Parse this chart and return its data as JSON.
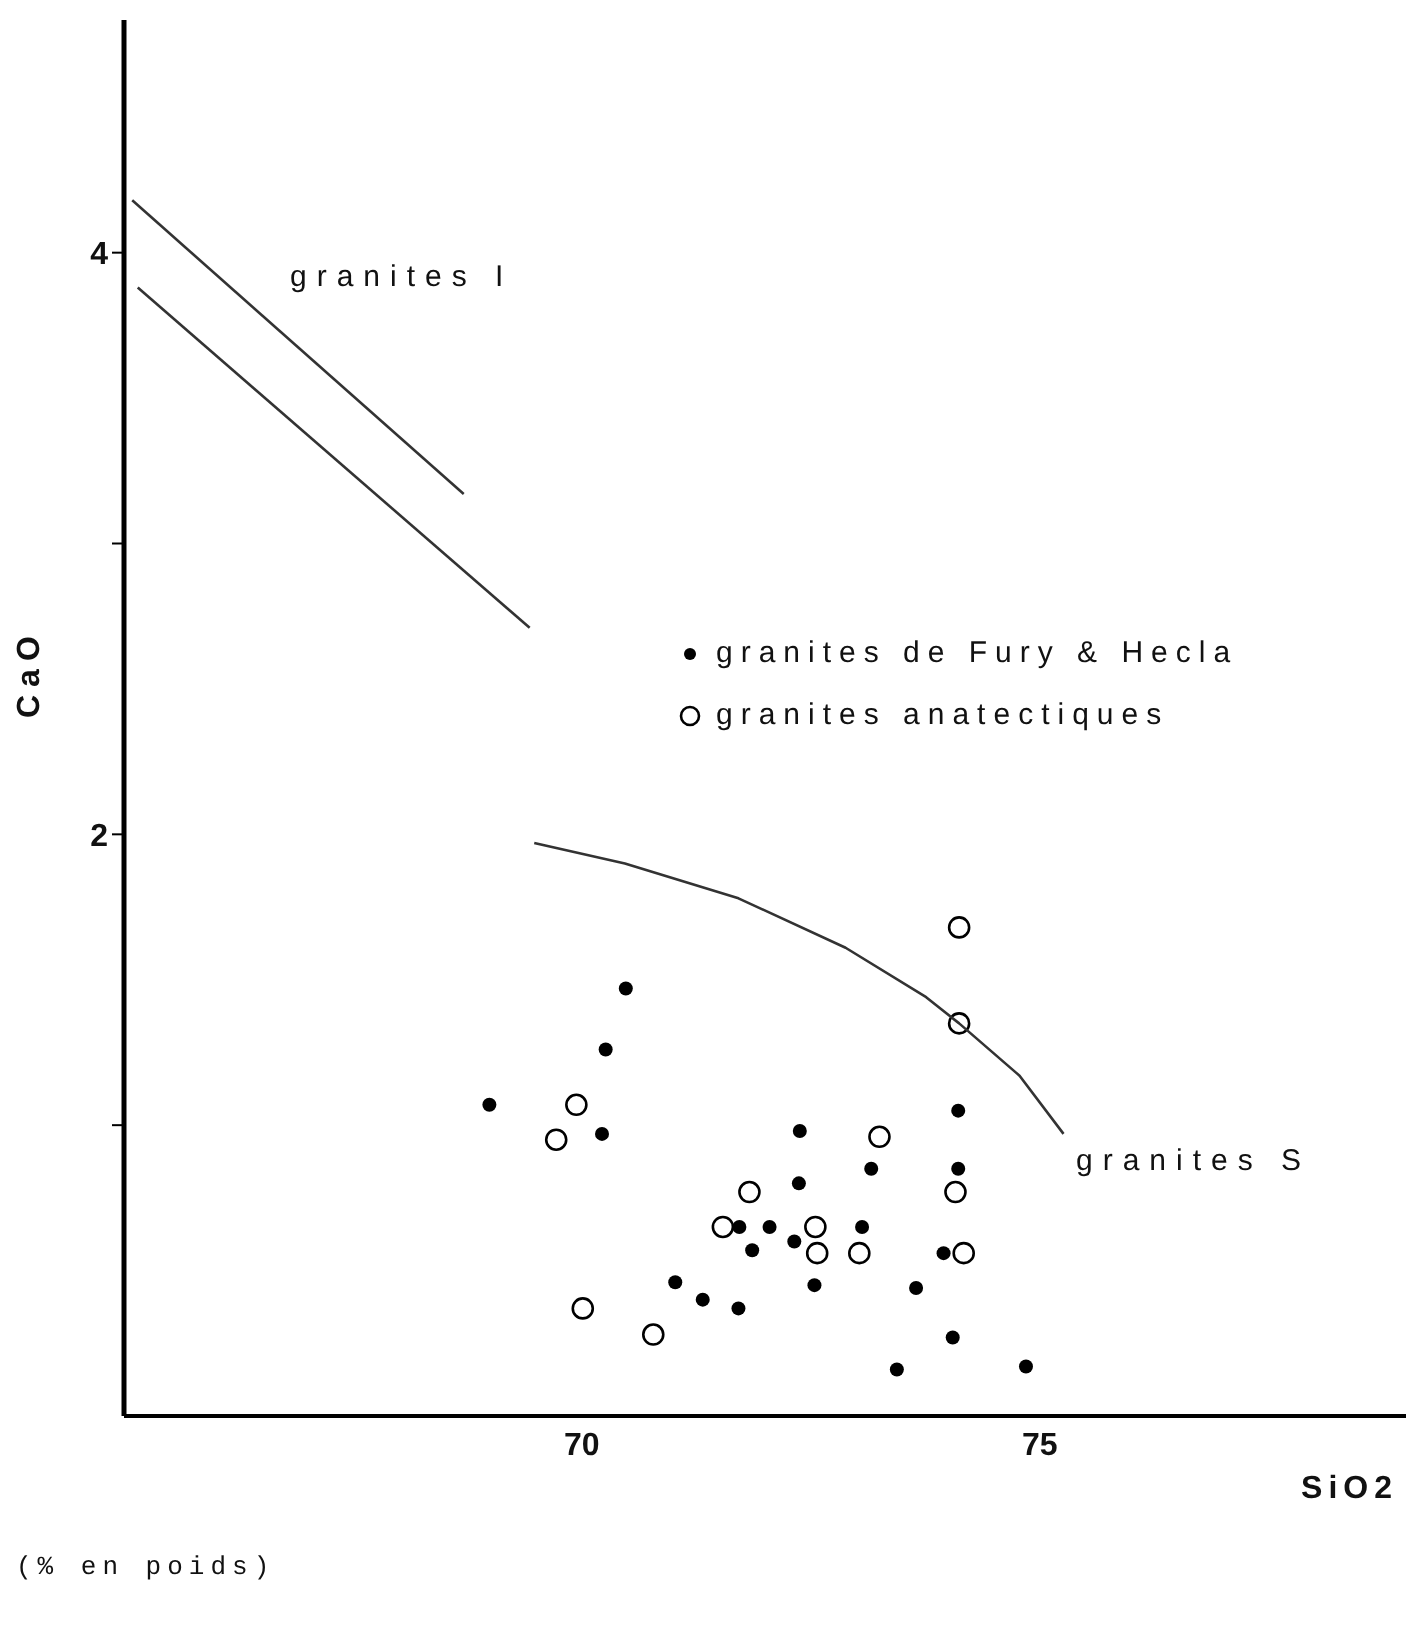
{
  "chart_data": {
    "type": "scatter",
    "xlabel": "SiO2",
    "ylabel": "CaO",
    "xlim": [
      65,
      79
    ],
    "xticks": [
      70,
      75
    ],
    "ylim": [
      0,
      4.8
    ],
    "yticks": [
      {
        "value": 1,
        "label": null
      },
      2,
      {
        "value": 3,
        "label": null
      },
      4
    ],
    "legend": "right",
    "marker": "circle",
    "annotations": [
      "(% en poids)",
      "granites I",
      "granites S"
    ],
    "series": [
      {
        "name": "granites de Fury & Hecla",
        "color": "#000000",
        "x": [
          70.48,
          70.26,
          68.99,
          70.22,
          72.38,
          73.16,
          74.11,
          74.11,
          72.37,
          71.72,
          72.05,
          73.06,
          71.86,
          72.32,
          73.95,
          71.02,
          71.32,
          71.71,
          72.54,
          73.65,
          74.05,
          73.44,
          74.85
        ],
        "values": [
          1.47,
          1.26,
          1.07,
          0.97,
          0.98,
          0.85,
          1.05,
          0.85,
          0.8,
          0.65,
          0.65,
          0.65,
          0.57,
          0.6,
          0.56,
          0.46,
          0.4,
          0.37,
          0.45,
          0.44,
          0.27,
          0.16,
          0.17
        ]
      },
      {
        "name": "granites anatectiques",
        "color": "#ffffff",
        "x": [
          74.12,
          74.12,
          69.94,
          69.72,
          73.25,
          71.83,
          74.08,
          71.54,
          72.55,
          72.57,
          73.03,
          74.17,
          70.01,
          70.78
        ],
        "values": [
          1.68,
          1.35,
          1.07,
          0.95,
          0.96,
          0.77,
          0.77,
          0.65,
          0.65,
          0.56,
          0.56,
          0.56,
          0.37,
          0.28
        ]
      },
      {
        "type": "line",
        "color": "#333333",
        "marker": "none",
        "line_style": "solid",
        "x": [
          65.09,
          68.71
        ],
        "values": [
          4.18,
          3.17
        ]
      },
      {
        "type": "line",
        "color": "#333333",
        "marker": "none",
        "line_style": "solid",
        "x": [
          65.15,
          69.43
        ],
        "values": [
          3.88,
          2.71
        ]
      },
      {
        "type": "line",
        "color": "#333333",
        "marker": "none",
        "line_style": "solid",
        "x": [
          69.48,
          70.47,
          71.71,
          72.88,
          73.76,
          74.12,
          74.78,
          75.26
        ],
        "values": [
          1.97,
          1.9,
          1.78,
          1.61,
          1.44,
          1.35,
          1.17,
          0.97
        ]
      }
    ]
  }
}
